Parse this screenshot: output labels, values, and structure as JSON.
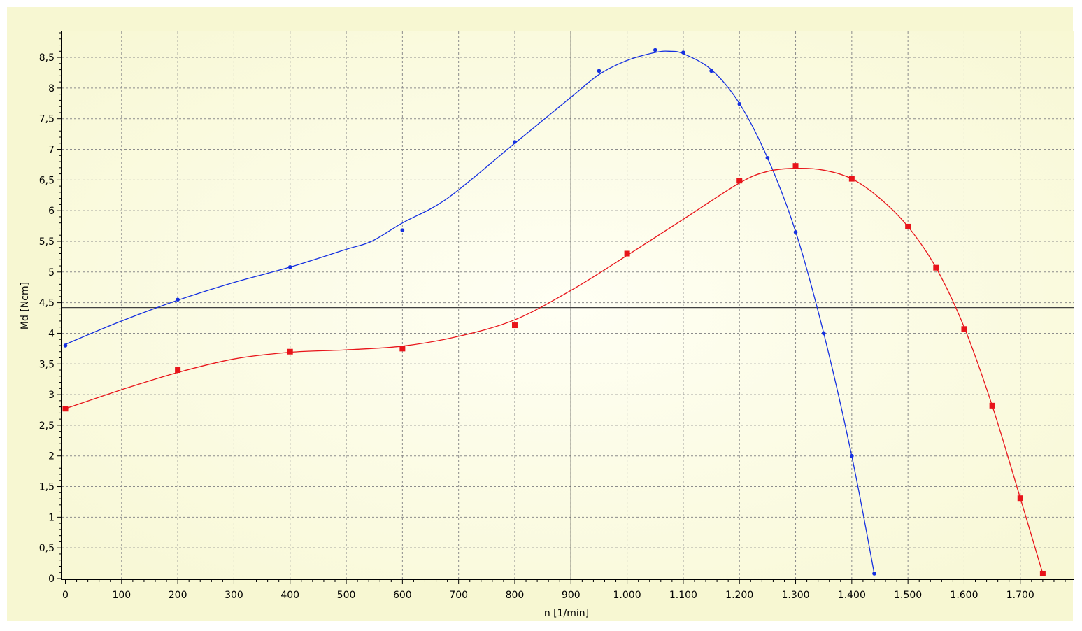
{
  "colors": {
    "plot_bg_center": "#fffff4",
    "plot_bg_edge": "#f7f7d2",
    "outer_bg": "#ffffff",
    "grid": "#8c8c8c",
    "axis": "#000000",
    "series_blue": "#1530e0",
    "series_red": "#e8141a",
    "crosshair": "#404040"
  },
  "chart_data": {
    "type": "line",
    "xlabel": "n [1/min]",
    "ylabel": "Md [Ncm]",
    "xlim": [
      -5,
      1790
    ],
    "ylim": [
      0,
      8.9
    ],
    "grid": true,
    "x_ticks": [
      0,
      100,
      200,
      300,
      400,
      500,
      600,
      700,
      800,
      900,
      1000,
      1100,
      1200,
      1300,
      1400,
      1500,
      1600,
      1700
    ],
    "x_tick_labels": [
      "0",
      "100",
      "200",
      "300",
      "400",
      "500",
      "600",
      "700",
      "800",
      "900",
      "1.000",
      "1.100",
      "1.200",
      "1.300",
      "1.400",
      "1.500",
      "1.600",
      "1.700"
    ],
    "y_ticks": [
      0,
      0.5,
      1,
      1.5,
      2,
      2.5,
      3,
      3.5,
      4,
      4.5,
      5,
      5.5,
      6,
      6.5,
      7,
      7.5,
      8,
      8.5
    ],
    "y_tick_labels": [
      "0",
      "0,5",
      "1",
      "1,5",
      "2",
      "2,5",
      "3",
      "3,5",
      "4",
      "4,5",
      "5",
      "5,5",
      "6",
      "6,5",
      "7",
      "7,5",
      "8",
      "8,5"
    ],
    "crosshair": {
      "x": 900,
      "y": 4.42
    },
    "series": [
      {
        "color": "#1530e0",
        "marker": "circle",
        "points": [
          [
            0,
            3.8
          ],
          [
            200,
            4.55
          ],
          [
            400,
            5.08
          ],
          [
            600,
            5.68
          ],
          [
            800,
            7.12
          ],
          [
            950,
            8.28
          ],
          [
            1050,
            8.62
          ],
          [
            1100,
            8.58
          ],
          [
            1150,
            8.28
          ],
          [
            1200,
            7.74
          ],
          [
            1250,
            6.86
          ],
          [
            1300,
            5.65
          ],
          [
            1350,
            4.0
          ],
          [
            1400,
            2.0
          ],
          [
            1440,
            0.08
          ]
        ],
        "curve": [
          [
            0,
            3.82
          ],
          [
            100,
            4.2
          ],
          [
            200,
            4.54
          ],
          [
            300,
            4.83
          ],
          [
            400,
            5.08
          ],
          [
            500,
            5.37
          ],
          [
            545,
            5.5
          ],
          [
            600,
            5.8
          ],
          [
            680,
            6.2
          ],
          [
            800,
            7.1
          ],
          [
            900,
            7.85
          ],
          [
            950,
            8.22
          ],
          [
            1000,
            8.45
          ],
          [
            1050,
            8.58
          ],
          [
            1075,
            8.6
          ],
          [
            1100,
            8.56
          ],
          [
            1150,
            8.3
          ],
          [
            1200,
            7.75
          ],
          [
            1250,
            6.86
          ],
          [
            1300,
            5.66
          ],
          [
            1350,
            4.0
          ],
          [
            1400,
            2.0
          ],
          [
            1440,
            0.08
          ]
        ]
      },
      {
        "color": "#e8141a",
        "marker": "square",
        "points": [
          [
            0,
            2.77
          ],
          [
            200,
            3.4
          ],
          [
            400,
            3.7
          ],
          [
            600,
            3.75
          ],
          [
            800,
            4.13
          ],
          [
            1000,
            5.3
          ],
          [
            1200,
            6.49
          ],
          [
            1300,
            6.73
          ],
          [
            1400,
            6.52
          ],
          [
            1500,
            5.74
          ],
          [
            1550,
            5.07
          ],
          [
            1600,
            4.07
          ],
          [
            1650,
            2.82
          ],
          [
            1700,
            1.31
          ],
          [
            1740,
            0.08
          ]
        ],
        "curve": [
          [
            0,
            2.77
          ],
          [
            100,
            3.08
          ],
          [
            200,
            3.36
          ],
          [
            300,
            3.58
          ],
          [
            400,
            3.69
          ],
          [
            500,
            3.73
          ],
          [
            600,
            3.79
          ],
          [
            700,
            3.95
          ],
          [
            800,
            4.22
          ],
          [
            900,
            4.7
          ],
          [
            1000,
            5.27
          ],
          [
            1100,
            5.86
          ],
          [
            1200,
            6.45
          ],
          [
            1250,
            6.64
          ],
          [
            1300,
            6.69
          ],
          [
            1350,
            6.66
          ],
          [
            1400,
            6.52
          ],
          [
            1450,
            6.2
          ],
          [
            1500,
            5.74
          ],
          [
            1550,
            5.07
          ],
          [
            1600,
            4.1
          ],
          [
            1650,
            2.82
          ],
          [
            1700,
            1.31
          ],
          [
            1740,
            0.08
          ]
        ]
      }
    ]
  }
}
